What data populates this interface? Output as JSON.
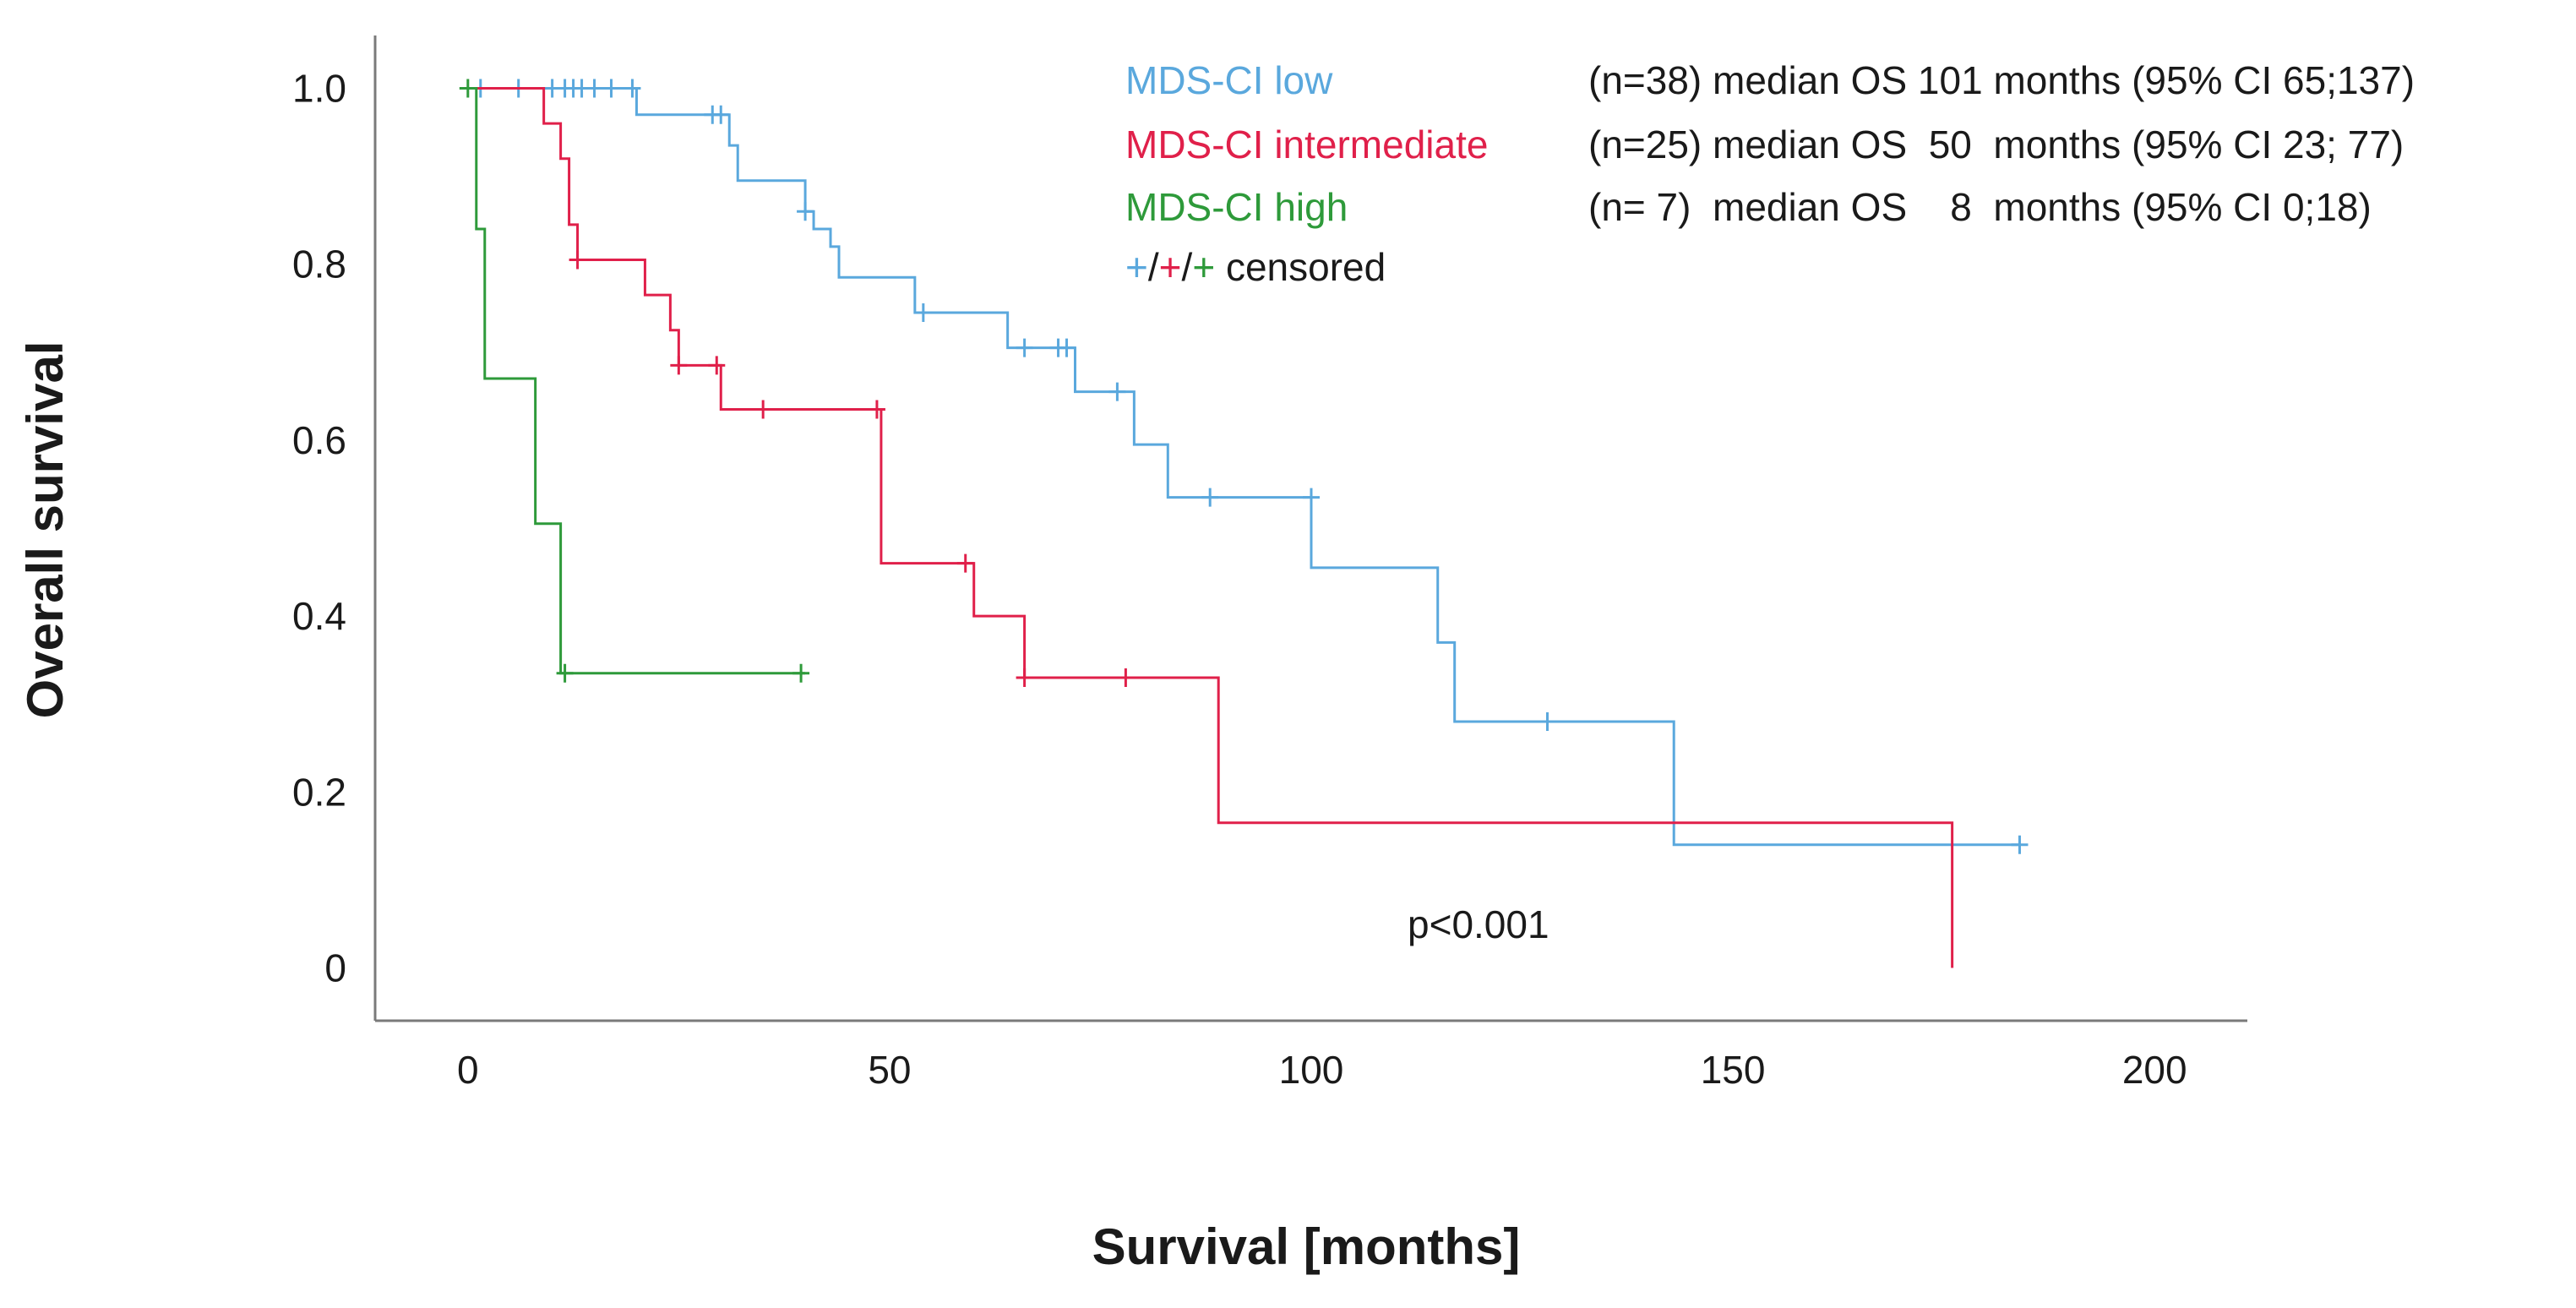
{
  "chart_data": {
    "type": "line",
    "subtype": "kaplan-meier",
    "title": "",
    "xlabel": "Survival [months]",
    "ylabel": "Overall survival",
    "xlim": [
      -11,
      211
    ],
    "ylim": [
      -0.06,
      1.06
    ],
    "xticks": [
      0,
      50,
      100,
      150,
      200
    ],
    "xtick_labels": [
      "0",
      "50",
      "100",
      "150",
      "200"
    ],
    "yticks": [
      0,
      0.2,
      0.4,
      0.6,
      0.8,
      1.0
    ],
    "ytick_labels": [
      "0",
      "0.2",
      "0.4",
      "0.6",
      "0.8",
      "1.0"
    ],
    "grid": false,
    "legend_position": "top-right",
    "annotation": "p<0.001",
    "censor_note": {
      "symbol": "+",
      "separator": "/",
      "label": "censored"
    },
    "series": [
      {
        "name": "MDS-CI low",
        "stats": "(n=38) median OS 101 months (95% CI 65;137)",
        "color": "#5aa8dd",
        "steps": [
          [
            0,
            1.0
          ],
          [
            20,
            0.97
          ],
          [
            31,
            0.935
          ],
          [
            32,
            0.895
          ],
          [
            40,
            0.86
          ],
          [
            41,
            0.84
          ],
          [
            43,
            0.82
          ],
          [
            44,
            0.785
          ],
          [
            53,
            0.745
          ],
          [
            64,
            0.705
          ],
          [
            72,
            0.655
          ],
          [
            79,
            0.595
          ],
          [
            83,
            0.535
          ],
          [
            100,
            0.455
          ],
          [
            115,
            0.37
          ],
          [
            117,
            0.28
          ],
          [
            143,
            0.14
          ],
          [
            184,
            0.14
          ]
        ],
        "censored": [
          [
            1.5,
            1.0
          ],
          [
            6,
            1.0
          ],
          [
            10,
            1.0
          ],
          [
            11.5,
            1.0
          ],
          [
            12.5,
            1.0
          ],
          [
            13.5,
            1.0
          ],
          [
            15,
            1.0
          ],
          [
            17,
            1.0
          ],
          [
            19.5,
            1.0
          ],
          [
            29,
            0.97
          ],
          [
            30,
            0.97
          ],
          [
            40,
            0.86
          ],
          [
            54,
            0.745
          ],
          [
            66,
            0.705
          ],
          [
            70,
            0.705
          ],
          [
            71,
            0.705
          ],
          [
            77,
            0.655
          ],
          [
            88,
            0.535
          ],
          [
            100,
            0.535
          ],
          [
            128,
            0.28
          ],
          [
            184,
            0.14
          ]
        ]
      },
      {
        "name": "MDS-CI intermediate",
        "stats": "(n=25) median OS  50  months (95% CI 23; 77)",
        "color": "#e0204a",
        "steps": [
          [
            0,
            1.0
          ],
          [
            9,
            0.96
          ],
          [
            11,
            0.92
          ],
          [
            12,
            0.845
          ],
          [
            13,
            0.805
          ],
          [
            21,
            0.765
          ],
          [
            24,
            0.725
          ],
          [
            25,
            0.685
          ],
          [
            30,
            0.635
          ],
          [
            49,
            0.46
          ],
          [
            60,
            0.4
          ],
          [
            66,
            0.33
          ],
          [
            89,
            0.165
          ],
          [
            176,
            0.165
          ],
          [
            176,
            0.0
          ]
        ],
        "censored": [
          [
            13,
            0.805
          ],
          [
            25,
            0.685
          ],
          [
            29.5,
            0.685
          ],
          [
            35,
            0.635
          ],
          [
            48.5,
            0.635
          ],
          [
            59,
            0.46
          ],
          [
            66,
            0.33
          ],
          [
            78,
            0.33
          ]
        ]
      },
      {
        "name": "MDS-CI high",
        "stats": "(n= 7)  median OS    8  months (95% CI 0;18)",
        "color": "#2e9a3a",
        "steps": [
          [
            0,
            1.0
          ],
          [
            1,
            0.84
          ],
          [
            2,
            0.67
          ],
          [
            8,
            0.505
          ],
          [
            11,
            0.335
          ],
          [
            40,
            0.335
          ]
        ],
        "censored": [
          [
            0,
            1.0
          ],
          [
            11.5,
            0.335
          ],
          [
            39.5,
            0.335
          ]
        ]
      }
    ]
  }
}
